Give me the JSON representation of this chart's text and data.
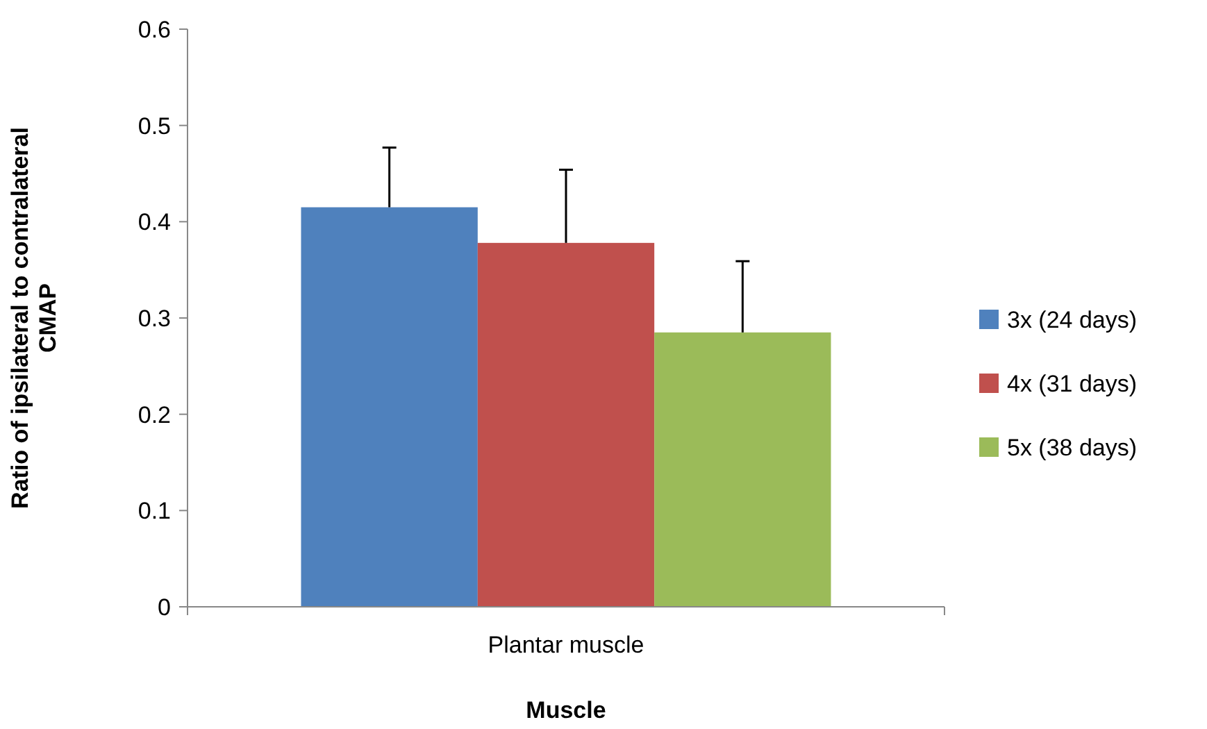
{
  "chart_data": {
    "type": "bar",
    "xlabel": "Muscle",
    "ylabel": "Ratio of ipsilateral to contralateral CMAP",
    "categories": [
      "Plantar muscle"
    ],
    "series": [
      {
        "name": "3x (24 days)",
        "color": "#4f81bd",
        "values": [
          0.415
        ],
        "errors": [
          [
            0.415,
            0.477
          ]
        ]
      },
      {
        "name": "4x (31 days)",
        "color": "#c0504d",
        "values": [
          0.378
        ],
        "errors": [
          [
            0.378,
            0.454
          ]
        ]
      },
      {
        "name": "5x (38 days)",
        "color": "#9bbb59",
        "values": [
          0.285
        ],
        "errors": [
          [
            0.285,
            0.359
          ]
        ]
      }
    ],
    "ylim": [
      0,
      0.6
    ],
    "yticks": [
      {
        "value": 0,
        "label": "0"
      },
      0.1,
      0.2,
      0.3,
      0.4,
      0.5,
      0.6
    ],
    "grid": false,
    "legend": "right"
  }
}
